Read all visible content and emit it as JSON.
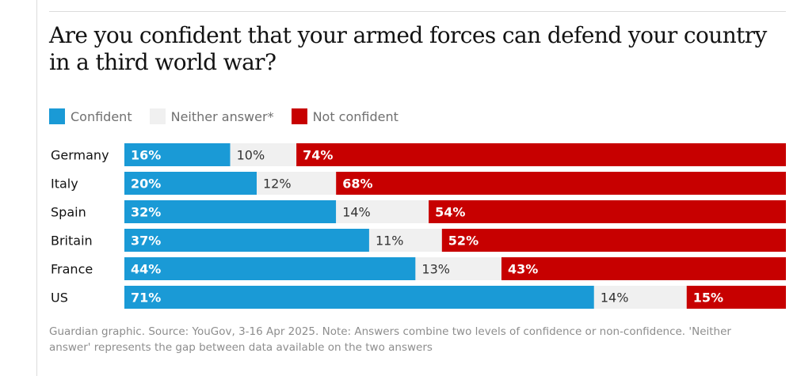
{
  "title": "Are you confident that your armed forces can defend your country in a third world war?",
  "legend": [
    {
      "label": "Confident",
      "color": "#1a9ad6"
    },
    {
      "label": "Neither answer*",
      "color": "#f0f0f0"
    },
    {
      "label": "Not confident",
      "color": "#c70000"
    }
  ],
  "source": "Guardian graphic. Source: YouGov, 3-16 Apr 2025. Note: Answers combine two levels of confidence or non-confidence. 'Neither answer' represents the gap between data available on the two answers",
  "chart_data": {
    "type": "bar",
    "orientation": "horizontal",
    "stacked": true,
    "categories": [
      "Germany",
      "Italy",
      "Spain",
      "Britain",
      "France",
      "US"
    ],
    "series": [
      {
        "name": "Confident",
        "values": [
          16,
          20,
          32,
          37,
          44,
          71
        ],
        "color": "#1a9ad6",
        "label_color": "#ffffff"
      },
      {
        "name": "Neither answer*",
        "values": [
          10,
          12,
          14,
          11,
          13,
          14
        ],
        "color": "#f0f0f0",
        "label_color": "#333333"
      },
      {
        "name": "Not confident",
        "values": [
          74,
          68,
          54,
          52,
          43,
          15
        ],
        "color": "#c70000",
        "label_color": "#ffffff"
      }
    ],
    "value_suffix": "%",
    "xlim": [
      0,
      100
    ],
    "legend_position": "top-left",
    "grid": false
  }
}
